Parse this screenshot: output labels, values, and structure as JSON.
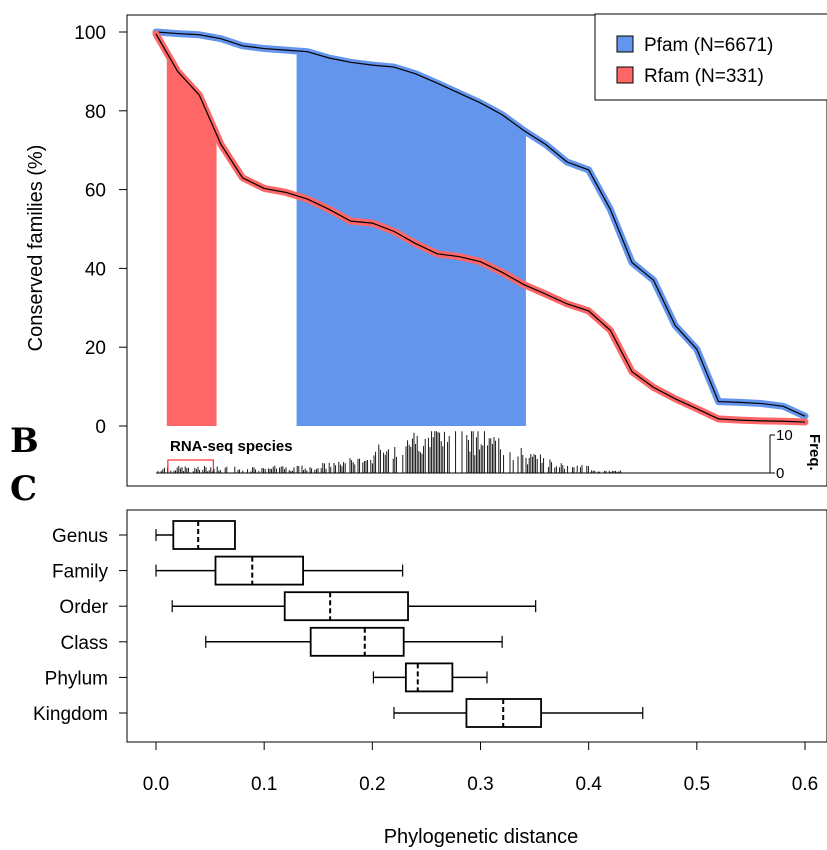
{
  "chart_data": [
    {
      "type": "line",
      "ylabel": "Conserved families (%)",
      "ylim": [
        0,
        100
      ],
      "yticks": [
        "0",
        "20",
        "40",
        "60",
        "80",
        "100"
      ],
      "xlim": [
        0.0,
        0.6
      ],
      "legend": {
        "placement": "top-right",
        "entries": [
          "Pfam (N=6671)",
          "Rfam (N=331)"
        ]
      },
      "series": [
        {
          "name": "Pfam (N=6671)",
          "color": "#6495ED",
          "x": [
            0.0,
            0.02,
            0.04,
            0.06,
            0.08,
            0.1,
            0.12,
            0.14,
            0.16,
            0.18,
            0.2,
            0.22,
            0.24,
            0.26,
            0.28,
            0.3,
            0.32,
            0.34,
            0.36,
            0.38,
            0.4,
            0.42,
            0.44,
            0.46,
            0.48,
            0.5,
            0.52,
            0.54,
            0.56,
            0.58,
            0.6
          ],
          "values": [
            100,
            99.6,
            99.3,
            98.3,
            96.5,
            95.8,
            95.4,
            95.0,
            93.4,
            92.3,
            91.6,
            91.1,
            89.4,
            87.0,
            84.5,
            82.0,
            79.0,
            75.0,
            71.5,
            67.0,
            65.0,
            55.0,
            41.5,
            37.0,
            25.5,
            19.5,
            6.2,
            6.0,
            5.7,
            5.0,
            2.5
          ]
        },
        {
          "name": "Rfam (N=331)",
          "color": "#FF6666",
          "x": [
            0.0,
            0.02,
            0.04,
            0.06,
            0.08,
            0.1,
            0.12,
            0.14,
            0.16,
            0.18,
            0.2,
            0.22,
            0.24,
            0.26,
            0.28,
            0.3,
            0.32,
            0.34,
            0.36,
            0.38,
            0.4,
            0.42,
            0.44,
            0.46,
            0.48,
            0.5,
            0.52,
            0.54,
            0.56,
            0.58,
            0.6
          ],
          "values": [
            99.5,
            90.0,
            84.0,
            71.5,
            63.0,
            60.3,
            59.3,
            57.6,
            55.0,
            52.0,
            51.5,
            49.4,
            46.3,
            43.7,
            43.0,
            41.7,
            39.0,
            35.9,
            33.5,
            31.0,
            29.2,
            24.3,
            13.8,
            9.8,
            6.9,
            4.4,
            1.8,
            1.5,
            1.3,
            1.2,
            1.0
          ]
        }
      ],
      "shaded_bands": [
        {
          "series": "Rfam (N=331)",
          "color": "#FF6666",
          "x_from": 0.01,
          "x_to": 0.056
        },
        {
          "series": "Pfam (N=6671)",
          "color": "#6495ED",
          "x_from": 0.13,
          "x_to": 0.342
        }
      ]
    },
    {
      "type": "bar",
      "panel": "B",
      "title": "RNA-seq species",
      "ylabel": "Freq.",
      "ylim": [
        0,
        10
      ],
      "yticks": [
        "0",
        "10"
      ],
      "xlim": [
        0.0,
        0.6
      ],
      "highlight_box": {
        "color": "#FF0000",
        "x_from": 0.011,
        "x_to": 0.053
      },
      "histogram_note": "dense frequency spikes between 0 and 0.43, peaking near 0.28"
    },
    {
      "type": "box",
      "panel": "C",
      "xlabel": "Phylogenetic distance",
      "xlim": [
        0.0,
        0.6
      ],
      "xticks": [
        "0.0",
        "0.1",
        "0.2",
        "0.3",
        "0.4",
        "0.5",
        "0.6"
      ],
      "categories": [
        "Genus",
        "Family",
        "Order",
        "Class",
        "Phylum",
        "Kingdom"
      ],
      "boxes": [
        {
          "label": "Genus",
          "min": 0.0,
          "q1": 0.016,
          "median": 0.039,
          "q3": 0.073,
          "max": 0.073
        },
        {
          "label": "Family",
          "min": 0.0,
          "q1": 0.055,
          "median": 0.089,
          "q3": 0.136,
          "max": 0.228
        },
        {
          "label": "Order",
          "min": 0.015,
          "q1": 0.119,
          "median": 0.161,
          "q3": 0.233,
          "max": 0.351
        },
        {
          "label": "Class",
          "min": 0.046,
          "q1": 0.143,
          "median": 0.193,
          "q3": 0.229,
          "max": 0.32
        },
        {
          "label": "Phylum",
          "min": 0.201,
          "q1": 0.231,
          "median": 0.242,
          "q3": 0.274,
          "max": 0.306
        },
        {
          "label": "Kingdom",
          "min": 0.22,
          "q1": 0.287,
          "median": 0.321,
          "q3": 0.356,
          "max": 0.45
        }
      ]
    }
  ],
  "panel_labels": {
    "b": "B",
    "c": "C"
  }
}
